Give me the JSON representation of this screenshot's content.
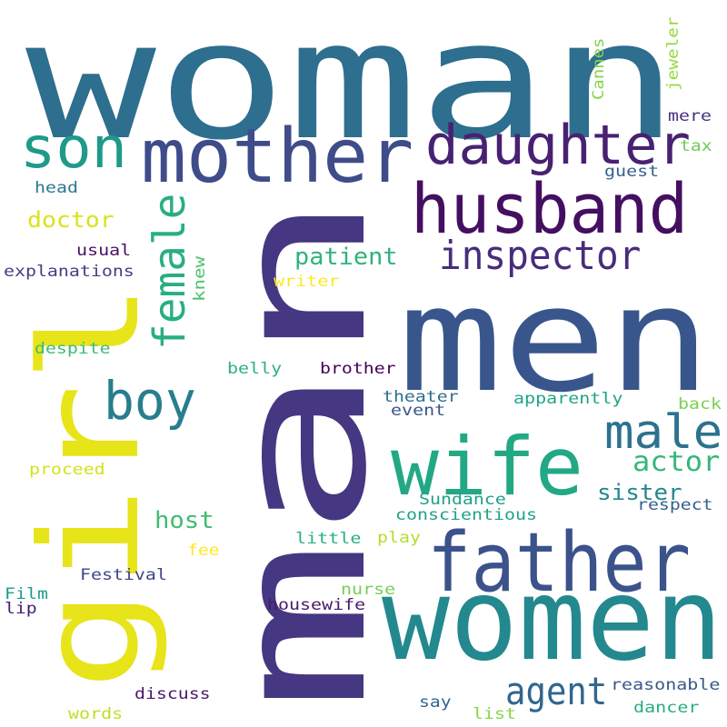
{
  "words": [
    {
      "text": "woman",
      "color": "#2e6e8e"
    },
    {
      "text": "man",
      "color": "#453781"
    },
    {
      "text": "men",
      "color": "#39568c"
    },
    {
      "text": "girl",
      "color": "#e7e419"
    },
    {
      "text": "women",
      "color": "#23898e"
    },
    {
      "text": "father",
      "color": "#3b528b"
    },
    {
      "text": "mother",
      "color": "#3e4c8a"
    },
    {
      "text": "husband",
      "color": "#440f61"
    },
    {
      "text": "daughter",
      "color": "#482173"
    },
    {
      "text": "wife",
      "color": "#22a884"
    },
    {
      "text": "son",
      "color": "#1f9a8a"
    },
    {
      "text": "boy",
      "color": "#287d8e"
    },
    {
      "text": "inspector",
      "color": "#472d7b"
    },
    {
      "text": "male",
      "color": "#2c728e"
    },
    {
      "text": "female",
      "color": "#29af7f"
    },
    {
      "text": "agent",
      "color": "#31668e"
    },
    {
      "text": "actor",
      "color": "#35b779"
    },
    {
      "text": "patient",
      "color": "#2fb47c"
    },
    {
      "text": "host",
      "color": "#3fbc73"
    },
    {
      "text": "sister",
      "color": "#24878e"
    },
    {
      "text": "doctor",
      "color": "#dae319"
    },
    {
      "text": "Cannes",
      "color": "#86d549"
    },
    {
      "text": "jeweler",
      "color": "#95d840"
    },
    {
      "text": "mere",
      "color": "#46327e"
    },
    {
      "text": "tax",
      "color": "#6ccd5a"
    },
    {
      "text": "guest",
      "color": "#355f8d"
    },
    {
      "text": "head",
      "color": "#2a788e"
    },
    {
      "text": "usual",
      "color": "#471063"
    },
    {
      "text": "explanations",
      "color": "#433e85"
    },
    {
      "text": "knew",
      "color": "#4ac16d"
    },
    {
      "text": "writer",
      "color": "#fde725"
    },
    {
      "text": "despite",
      "color": "#3dbc74"
    },
    {
      "text": "belly",
      "color": "#2db27d"
    },
    {
      "text": "brother",
      "color": "#440154"
    },
    {
      "text": "theater",
      "color": "#2d708e"
    },
    {
      "text": "event",
      "color": "#3a548c"
    },
    {
      "text": "apparently",
      "color": "#20a486"
    },
    {
      "text": "back",
      "color": "#7ad151"
    },
    {
      "text": "proceed",
      "color": "#d2e21b"
    },
    {
      "text": "Sundance",
      "color": "#1fa088"
    },
    {
      "text": "respect",
      "color": "#34618d"
    },
    {
      "text": "conscientious",
      "color": "#20a386"
    },
    {
      "text": "little",
      "color": "#2ab07f"
    },
    {
      "text": "play",
      "color": "#b5de2b"
    },
    {
      "text": "fee",
      "color": "#fde725"
    },
    {
      "text": "Festival",
      "color": "#404688"
    },
    {
      "text": "Film",
      "color": "#1e9c89"
    },
    {
      "text": "lip",
      "color": "#481d6f"
    },
    {
      "text": "nurse",
      "color": "#75d054"
    },
    {
      "text": "housewife",
      "color": "#481a6c"
    },
    {
      "text": "discuss",
      "color": "#48186a"
    },
    {
      "text": "words",
      "color": "#bddf26"
    },
    {
      "text": "say",
      "color": "#32648e"
    },
    {
      "text": "list",
      "color": "#86d549"
    },
    {
      "text": "reasonable",
      "color": "#38588c"
    },
    {
      "text": "dancer",
      "color": "#27ad81"
    }
  ]
}
